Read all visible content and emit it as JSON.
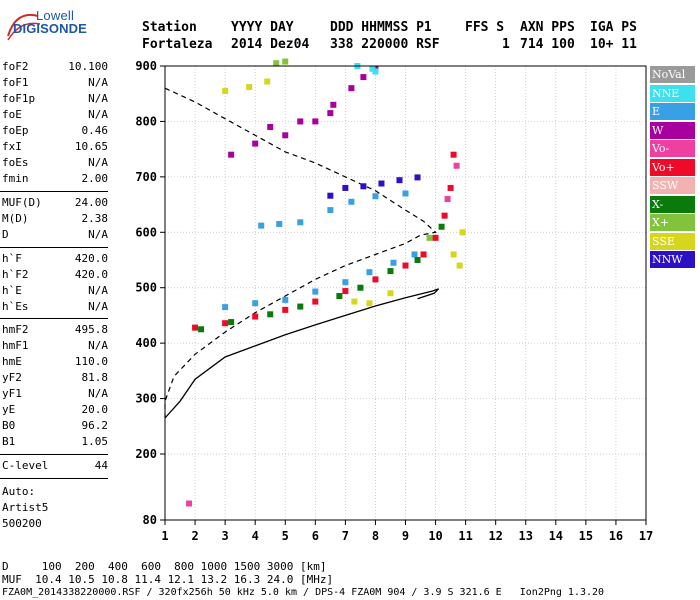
{
  "logo": {
    "top": "Lowell",
    "bottom": "DIGISONDE"
  },
  "header": {
    "row1": [
      "Station",
      "YYYY DAY",
      "DDD HHMMSS P1",
      "FFS S",
      "AXN PPS",
      "IGA PS"
    ],
    "row2": [
      "Fortaleza",
      "2014 Dez04",
      "338 220000 RSF",
      "1",
      "714 100",
      "10+ 11"
    ]
  },
  "params": [
    {
      "k": "foF2",
      "v": "10.100"
    },
    {
      "k": "foF1",
      "v": "N/A"
    },
    {
      "k": "foF1p",
      "v": "N/A"
    },
    {
      "k": "foE",
      "v": "N/A"
    },
    {
      "k": "foEp",
      "v": "0.46"
    },
    {
      "k": "fxI",
      "v": "10.65"
    },
    {
      "k": "foEs",
      "v": "N/A"
    },
    {
      "k": "fmin",
      "v": "2.00"
    },
    {
      "k": "MUF(D)",
      "v": "24.00"
    },
    {
      "k": "M(D)",
      "v": "2.38"
    },
    {
      "k": "D",
      "v": "N/A"
    },
    {
      "k": "h`F",
      "v": "420.0"
    },
    {
      "k": "h`F2",
      "v": "420.0"
    },
    {
      "k": "h`E",
      "v": "N/A"
    },
    {
      "k": "h`Es",
      "v": "N/A"
    },
    {
      "k": "hmF2",
      "v": "495.8"
    },
    {
      "k": "hmF1",
      "v": "N/A"
    },
    {
      "k": "hmE",
      "v": "110.0"
    },
    {
      "k": "yF2",
      "v": "81.8"
    },
    {
      "k": "yF1",
      "v": "N/A"
    },
    {
      "k": "yE",
      "v": "20.0"
    },
    {
      "k": "B0",
      "v": "96.2"
    },
    {
      "k": "B1",
      "v": "1.05"
    },
    {
      "k": "C-level",
      "v": "44"
    }
  ],
  "auto": {
    "label": "Auto:",
    "artist": "Artist5",
    "version": "500200"
  },
  "legend": [
    {
      "label": "NoVal",
      "color": "#9a9a9a"
    },
    {
      "label": "NNE",
      "color": "#3ee0ee"
    },
    {
      "label": "E",
      "color": "#3aa0e6"
    },
    {
      "label": "W",
      "color": "#a8009e"
    },
    {
      "label": "Vo-",
      "color": "#ee40a0"
    },
    {
      "label": "Vo+",
      "color": "#f00a2a"
    },
    {
      "label": "SSW",
      "color": "#f2b2b2"
    },
    {
      "label": "X-",
      "color": "#0a7a0a"
    },
    {
      "label": "X+",
      "color": "#82c23c"
    },
    {
      "label": "SSE",
      "color": "#d6d61e"
    },
    {
      "label": "NNW",
      "color": "#2d10c6"
    }
  ],
  "bottom": {
    "d_row": "D     100  200  400  600  800 1000 1500 3000 [km]",
    "muf_row": "MUF  10.4 10.5 10.8 11.4 12.1 13.2 16.3 24.0 [MHz]",
    "footer": "FZA0M_2014338220000.RSF / 320fx256h 50 kHz 5.0 km / DPS-4 FZA0M 904 / 3.9 S 321.6 E   Ion2Png 1.3.20"
  },
  "chart_data": {
    "type": "scatter",
    "x_ticks": [
      "1",
      "2",
      "3",
      "4",
      "5",
      "6",
      "7",
      "8",
      "9",
      "10",
      "11",
      "12",
      "13",
      "14",
      "15",
      "16",
      "17"
    ],
    "y_ticks": [
      "80",
      "200",
      "300",
      "400",
      "500",
      "600",
      "700",
      "800",
      "900"
    ],
    "xlim": [
      1,
      17
    ],
    "y_scale": "nonlinear ionogram height axis (80 at bottom, then 200 to 900 linear)",
    "grid": true,
    "legend_position": "right",
    "series": [
      {
        "name": "E",
        "points": [
          [
            4.2,
            612
          ],
          [
            4.8,
            615
          ],
          [
            5.5,
            618
          ],
          [
            6.5,
            640
          ],
          [
            7.2,
            655
          ],
          [
            8.0,
            665
          ],
          [
            9.0,
            670
          ],
          [
            3.0,
            465
          ],
          [
            4.0,
            472
          ],
          [
            5.0,
            478
          ],
          [
            6.0,
            493
          ],
          [
            7.0,
            510
          ],
          [
            7.8,
            528
          ],
          [
            8.6,
            545
          ],
          [
            9.3,
            560
          ]
        ]
      },
      {
        "name": "W",
        "points": [
          [
            3.2,
            740
          ],
          [
            4.0,
            760
          ],
          [
            5.0,
            775
          ],
          [
            6.0,
            800
          ],
          [
            6.6,
            830
          ],
          [
            7.2,
            860
          ],
          [
            7.6,
            880
          ],
          [
            8.0,
            895
          ],
          [
            4.5,
            790
          ],
          [
            5.5,
            800
          ],
          [
            6.5,
            815
          ]
        ]
      },
      {
        "name": "NNW",
        "points": [
          [
            7.0,
            680
          ],
          [
            7.6,
            683
          ],
          [
            8.2,
            688
          ],
          [
            8.8,
            694
          ],
          [
            9.4,
            699
          ],
          [
            6.5,
            666
          ]
        ]
      },
      {
        "name": "Vo+",
        "points": [
          [
            2.0,
            428
          ],
          [
            3.0,
            436
          ],
          [
            4.0,
            448
          ],
          [
            5.0,
            460
          ],
          [
            6.0,
            475
          ],
          [
            7.0,
            494
          ],
          [
            8.0,
            515
          ],
          [
            9.0,
            540
          ],
          [
            9.6,
            560
          ],
          [
            10.0,
            590
          ],
          [
            10.3,
            630
          ],
          [
            10.5,
            680
          ],
          [
            10.6,
            740
          ]
        ]
      },
      {
        "name": "X-",
        "points": [
          [
            2.2,
            425
          ],
          [
            3.2,
            438
          ],
          [
            4.5,
            452
          ],
          [
            5.5,
            466
          ],
          [
            6.8,
            485
          ],
          [
            7.5,
            500
          ],
          [
            8.5,
            530
          ],
          [
            9.4,
            550
          ],
          [
            10.2,
            610
          ]
        ]
      },
      {
        "name": "SSE",
        "points": [
          [
            3.0,
            855
          ],
          [
            3.8,
            862
          ],
          [
            4.4,
            872
          ],
          [
            7.3,
            475
          ],
          [
            7.8,
            472
          ],
          [
            8.5,
            490
          ],
          [
            10.8,
            540
          ],
          [
            10.6,
            560
          ],
          [
            10.9,
            600
          ]
        ]
      },
      {
        "name": "NNE",
        "points": [
          [
            7.4,
            900
          ],
          [
            7.9,
            895
          ],
          [
            8.0,
            890
          ]
        ]
      },
      {
        "name": "X+",
        "points": [
          [
            4.7,
            905
          ],
          [
            5.0,
            908
          ],
          [
            9.8,
            590
          ]
        ]
      },
      {
        "name": "Vo-",
        "points": [
          [
            1.8,
            110
          ],
          [
            10.4,
            660
          ],
          [
            10.7,
            720
          ]
        ]
      }
    ],
    "profile_solid": [
      [
        1.0,
        265
      ],
      [
        1.5,
        295
      ],
      [
        2.0,
        335
      ],
      [
        3.0,
        375
      ],
      [
        4.0,
        395
      ],
      [
        5.0,
        415
      ],
      [
        6.0,
        433
      ],
      [
        7.0,
        450
      ],
      [
        8.0,
        467
      ],
      [
        9.0,
        482
      ],
      [
        9.6,
        490
      ],
      [
        9.9,
        494
      ],
      [
        10.0,
        496
      ],
      [
        10.1,
        498
      ],
      [
        9.95,
        490
      ],
      [
        9.4,
        480
      ]
    ],
    "profile_dashed": [
      [
        1.0,
        265
      ],
      [
        1.0,
        295
      ],
      [
        1.3,
        340
      ],
      [
        2.0,
        380
      ],
      [
        3.0,
        420
      ],
      [
        4.0,
        455
      ],
      [
        5.0,
        485
      ],
      [
        6.0,
        515
      ],
      [
        7.0,
        540
      ],
      [
        8.0,
        560
      ],
      [
        9.0,
        580
      ],
      [
        9.5,
        595
      ],
      [
        10.0,
        600
      ],
      [
        9.6,
        620
      ],
      [
        9.0,
        640
      ],
      [
        8.0,
        675
      ],
      [
        7.0,
        700
      ],
      [
        6.0,
        725
      ],
      [
        5.0,
        745
      ],
      [
        4.0,
        775
      ],
      [
        3.0,
        805
      ],
      [
        2.0,
        835
      ],
      [
        1.0,
        860
      ]
    ]
  }
}
